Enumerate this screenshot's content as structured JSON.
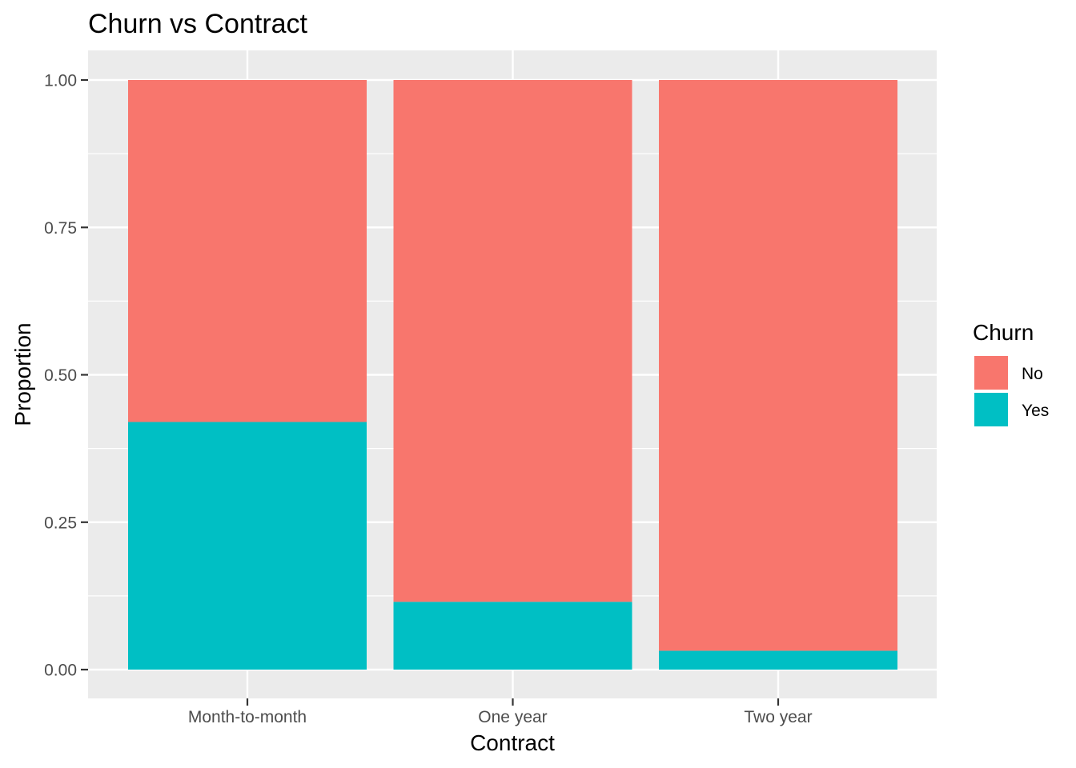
{
  "chart_data": {
    "type": "bar",
    "stacked": true,
    "title": "Churn vs Contract",
    "xlabel": "Contract",
    "ylabel": "Proportion",
    "categories": [
      "Month-to-month",
      "One year",
      "Two year"
    ],
    "series": [
      {
        "name": "Yes",
        "color": "#00BFC4",
        "values": [
          0.42,
          0.115,
          0.032
        ]
      },
      {
        "name": "No",
        "color": "#F8766D",
        "values": [
          0.58,
          0.885,
          0.968
        ]
      }
    ],
    "ylim": [
      0,
      1
    ],
    "y_ticks": [
      0,
      0.25,
      0.5,
      0.75,
      1
    ],
    "y_tick_labels": [
      "0.00",
      "0.25",
      "0.50",
      "0.75",
      "1.00"
    ],
    "grid": true,
    "legend": {
      "title": "Churn",
      "position": "right",
      "entries": [
        {
          "label": "No",
          "color": "#F8766D"
        },
        {
          "label": "Yes",
          "color": "#00BFC4"
        }
      ]
    },
    "panel_background": "#EBEBEB",
    "grid_color": "#FFFFFF"
  }
}
